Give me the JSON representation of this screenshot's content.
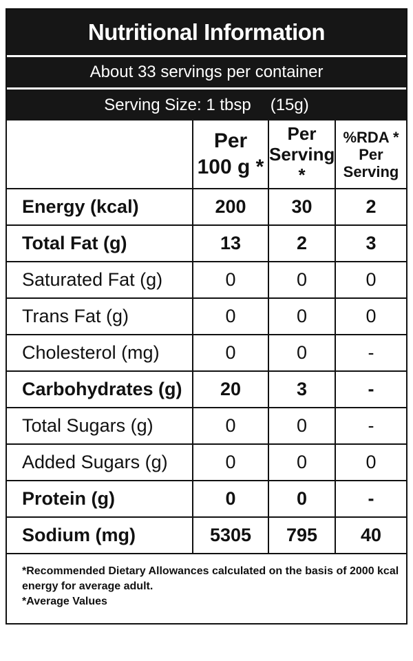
{
  "header": {
    "title": "Nutritional Information",
    "servings": "About 33 servings per container",
    "serving_size": "Serving Size: 1 tbsp",
    "serving_weight": "(15g)"
  },
  "table": {
    "columns": [
      [
        "Per",
        "100 g *"
      ],
      [
        "Per",
        "Serving *"
      ],
      [
        "%RDA *",
        "Per",
        "Serving"
      ]
    ],
    "rows": [
      [
        "Energy (kcal)",
        200,
        30,
        2
      ],
      [
        "Total Fat (g)",
        13,
        2,
        3
      ],
      [
        "Saturated Fat (g)",
        0,
        0,
        0
      ],
      [
        "Trans Fat (g)",
        0,
        0,
        0
      ],
      [
        "Cholesterol (mg)",
        0,
        0,
        "-"
      ],
      [
        "Carbohydrates (g)",
        20,
        3,
        "-"
      ],
      [
        "Total Sugars (g)",
        0,
        0,
        "-"
      ],
      [
        "Added Sugars (g)",
        0,
        0,
        0
      ],
      [
        "Protein  (g)",
        0,
        0,
        "-"
      ],
      [
        "Sodium (mg)",
        5305,
        795,
        40
      ]
    ]
  },
  "footnotes": [
    "*Recommended Dietary Allowances calculated on the basis of 2000 kcal energy for average adult.",
    "*Average Values"
  ]
}
